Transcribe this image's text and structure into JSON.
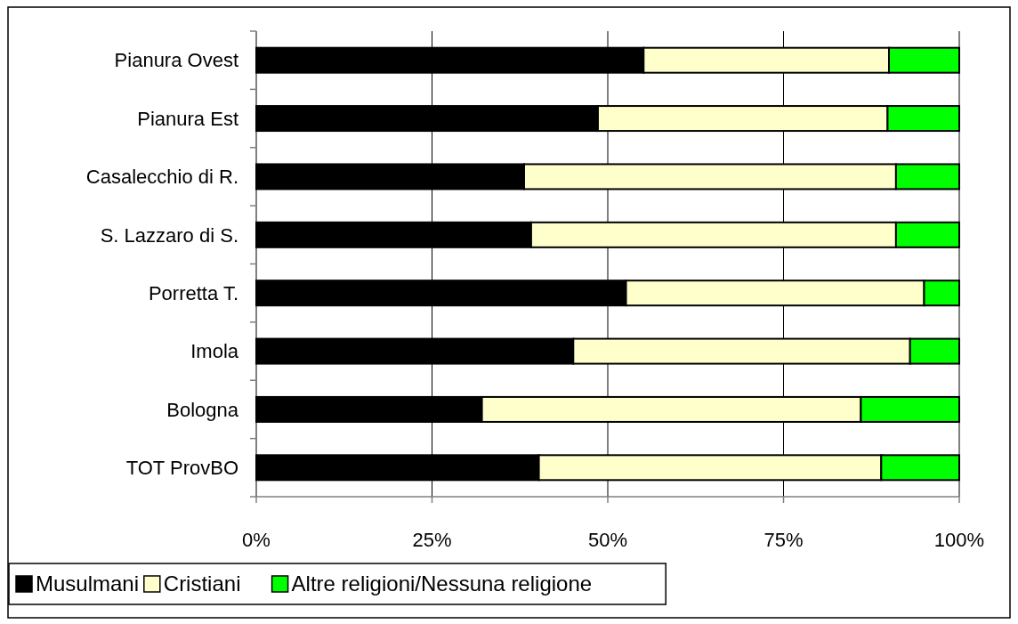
{
  "chart_data": {
    "type": "bar",
    "orientation": "horizontal",
    "stacked": true,
    "categories": [
      "Pianura Ovest",
      "Pianura Est",
      "Casalecchio di R.",
      "S. Lazzaro di S.",
      "Porretta T.",
      "Imola",
      "Bologna",
      "TOT ProvBO"
    ],
    "series": [
      {
        "name": "Musulmani",
        "color": "#000000",
        "values": [
          55.1,
          48.6,
          38.1,
          39.1,
          52.6,
          45.1,
          32.1,
          40.2
        ]
      },
      {
        "name": "Cristiani",
        "color": "#ffffcc",
        "values": [
          34.9,
          41.2,
          52.9,
          51.9,
          42.4,
          47.9,
          53.9,
          48.7
        ]
      },
      {
        "name": "Altre religioni/Nessuna religione",
        "color": "#00ff00",
        "values": [
          10.0,
          10.2,
          9.0,
          9.0,
          5.0,
          7.0,
          14.0,
          11.1
        ]
      }
    ],
    "xlim": [
      0,
      100
    ],
    "xticks": [
      {
        "value": 0,
        "label": "0%"
      },
      {
        "value": 25,
        "label": "25%"
      },
      {
        "value": 50,
        "label": "50%"
      },
      {
        "value": 75,
        "label": "75%"
      },
      {
        "value": 100,
        "label": "100%"
      }
    ],
    "grid": "x",
    "legend": "bottom left"
  }
}
